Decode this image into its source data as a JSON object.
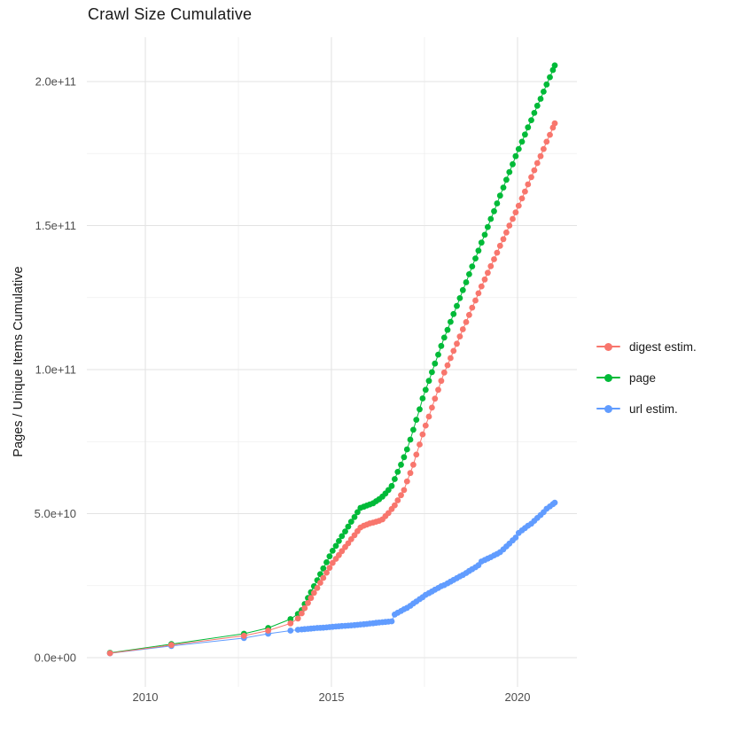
{
  "title": "Crawl Size Cumulative",
  "chart_data": {
    "type": "scatter",
    "title": "Crawl Size Cumulative",
    "xlabel": "",
    "ylabel": "Pages / Unique Items Cumulative",
    "value_unit_of_points": 1000000000.0,
    "xlim": [
      2008.48,
      2021.6
    ],
    "ylim": [
      -10300000000,
      215400000000
    ],
    "grid": "on",
    "legend_position": "right",
    "axes": {
      "x": {
        "major_ticks": [
          {
            "v": 2010,
            "label": "2010"
          },
          {
            "v": 2015,
            "label": "2015"
          },
          {
            "v": 2020,
            "label": "2020"
          }
        ],
        "minor_breaks": [
          2012.5,
          2017.5
        ]
      },
      "y": {
        "major_ticks": [
          {
            "v": 0,
            "label": "0.0e+00"
          },
          {
            "v": 50,
            "label": "5.0e+10"
          },
          {
            "v": 100,
            "label": "1.0e+11"
          },
          {
            "v": 150,
            "label": "1.5e+11"
          },
          {
            "v": 200,
            "label": "2.0e+11"
          }
        ],
        "minor_breaks": [
          25,
          75,
          125,
          175
        ]
      }
    },
    "legend": {
      "entries": [
        {
          "label": "digest estim.",
          "color": "#F8766D"
        },
        {
          "label": "page",
          "color": "#00BA38"
        },
        {
          "label": "url estim.",
          "color": "#619CFF"
        }
      ]
    },
    "series": [
      {
        "name": "page",
        "color": "#00BA38",
        "points": [
          [
            2009.05,
            1.7
          ],
          [
            2010.7,
            4.7
          ],
          [
            2012.65,
            8.3
          ],
          [
            2013.3,
            10.3
          ],
          [
            2013.9,
            13.4
          ],
          [
            2014.1,
            15.2
          ],
          [
            2014.2,
            16.5
          ],
          [
            2014.28,
            18.6
          ],
          [
            2014.37,
            20.7
          ],
          [
            2014.45,
            22.7
          ],
          [
            2014.53,
            24.8
          ],
          [
            2014.62,
            26.9
          ],
          [
            2014.7,
            29
          ],
          [
            2014.78,
            31
          ],
          [
            2014.87,
            33.1
          ],
          [
            2014.95,
            35.2
          ],
          [
            2015.03,
            37.1
          ],
          [
            2015.12,
            38.8
          ],
          [
            2015.2,
            40.5
          ],
          [
            2015.28,
            42.2
          ],
          [
            2015.37,
            43.8
          ],
          [
            2015.45,
            45.5
          ],
          [
            2015.53,
            47.2
          ],
          [
            2015.62,
            48.8
          ],
          [
            2015.7,
            50.5
          ],
          [
            2015.78,
            52
          ],
          [
            2015.87,
            52.4
          ],
          [
            2015.95,
            52.8
          ],
          [
            2016.03,
            53.2
          ],
          [
            2016.12,
            53.6
          ],
          [
            2016.2,
            54.3
          ],
          [
            2016.28,
            55
          ],
          [
            2016.37,
            55.9
          ],
          [
            2016.45,
            57
          ],
          [
            2016.53,
            58.2
          ],
          [
            2016.62,
            59.6
          ],
          [
            2016.7,
            62
          ],
          [
            2016.78,
            64.5
          ],
          [
            2016.87,
            67
          ],
          [
            2016.95,
            69.6
          ],
          [
            2017.03,
            72.3
          ],
          [
            2017.12,
            75.7
          ],
          [
            2017.2,
            79.1
          ],
          [
            2017.28,
            82.6
          ],
          [
            2017.37,
            86.2
          ],
          [
            2017.45,
            90
          ],
          [
            2017.53,
            93
          ],
          [
            2017.62,
            96.1
          ],
          [
            2017.7,
            99.1
          ],
          [
            2017.78,
            102.1
          ],
          [
            2017.87,
            105.2
          ],
          [
            2017.95,
            108.2
          ],
          [
            2018.03,
            111.1
          ],
          [
            2018.12,
            113.8
          ],
          [
            2018.2,
            116.6
          ],
          [
            2018.28,
            119.3
          ],
          [
            2018.37,
            122.1
          ],
          [
            2018.45,
            124.8
          ],
          [
            2018.53,
            127.6
          ],
          [
            2018.62,
            130.3
          ],
          [
            2018.7,
            133.1
          ],
          [
            2018.78,
            135.8
          ],
          [
            2018.87,
            138.6
          ],
          [
            2018.95,
            141.3
          ],
          [
            2019.03,
            144.1
          ],
          [
            2019.12,
            146.8
          ],
          [
            2019.2,
            149.5
          ],
          [
            2019.28,
            152.3
          ],
          [
            2019.37,
            155
          ],
          [
            2019.45,
            157.7
          ],
          [
            2019.53,
            160.4
          ],
          [
            2019.62,
            163.2
          ],
          [
            2019.7,
            165.9
          ],
          [
            2019.78,
            168.6
          ],
          [
            2019.87,
            171.3
          ],
          [
            2019.95,
            174.1
          ],
          [
            2020.03,
            176.6
          ],
          [
            2020.12,
            179.1
          ],
          [
            2020.2,
            181.6
          ],
          [
            2020.28,
            184.1
          ],
          [
            2020.37,
            186.6
          ],
          [
            2020.45,
            189.1
          ],
          [
            2020.53,
            191.6
          ],
          [
            2020.62,
            194
          ],
          [
            2020.7,
            196.5
          ],
          [
            2020.78,
            199
          ],
          [
            2020.87,
            201.5
          ],
          [
            2020.95,
            204
          ],
          [
            2021,
            205.6
          ]
        ]
      },
      {
        "name": "url estim.",
        "color": "#619CFF",
        "points": [
          [
            2009.05,
            1.5
          ],
          [
            2010.7,
            4.05
          ],
          [
            2012.65,
            6.8
          ],
          [
            2013.3,
            8.3
          ],
          [
            2013.9,
            9.4
          ],
          [
            2014.1,
            9.7
          ],
          [
            2014.2,
            9.8
          ],
          [
            2014.28,
            9.9
          ],
          [
            2014.37,
            10
          ],
          [
            2014.45,
            10.1
          ],
          [
            2014.53,
            10.2
          ],
          [
            2014.62,
            10.3
          ],
          [
            2014.7,
            10.35
          ],
          [
            2014.78,
            10.4
          ],
          [
            2014.87,
            10.5
          ],
          [
            2014.95,
            10.6
          ],
          [
            2015.03,
            10.7
          ],
          [
            2015.12,
            10.8
          ],
          [
            2015.2,
            10.9
          ],
          [
            2015.28,
            11
          ],
          [
            2015.37,
            11.05
          ],
          [
            2015.45,
            11.1
          ],
          [
            2015.53,
            11.2
          ],
          [
            2015.62,
            11.3
          ],
          [
            2015.7,
            11.4
          ],
          [
            2015.78,
            11.5
          ],
          [
            2015.87,
            11.6
          ],
          [
            2015.95,
            11.7
          ],
          [
            2016.03,
            11.85
          ],
          [
            2016.12,
            11.95
          ],
          [
            2016.2,
            12.1
          ],
          [
            2016.28,
            12.2
          ],
          [
            2016.37,
            12.3
          ],
          [
            2016.45,
            12.4
          ],
          [
            2016.53,
            12.5
          ],
          [
            2016.62,
            12.6
          ],
          [
            2016.7,
            15
          ],
          [
            2016.78,
            15.6
          ],
          [
            2016.87,
            16.2
          ],
          [
            2016.95,
            16.8
          ],
          [
            2017.03,
            17.3
          ],
          [
            2017.12,
            18
          ],
          [
            2017.2,
            18.8
          ],
          [
            2017.28,
            19.5
          ],
          [
            2017.37,
            20.3
          ],
          [
            2017.45,
            21
          ],
          [
            2017.53,
            21.8
          ],
          [
            2017.62,
            22.4
          ],
          [
            2017.7,
            23
          ],
          [
            2017.78,
            23.6
          ],
          [
            2017.87,
            24.2
          ],
          [
            2017.95,
            24.8
          ],
          [
            2018.03,
            25.2
          ],
          [
            2018.12,
            25.8
          ],
          [
            2018.2,
            26.4
          ],
          [
            2018.28,
            27
          ],
          [
            2018.37,
            27.6
          ],
          [
            2018.45,
            28.2
          ],
          [
            2018.53,
            28.7
          ],
          [
            2018.62,
            29.4
          ],
          [
            2018.7,
            30.1
          ],
          [
            2018.78,
            30.7
          ],
          [
            2018.87,
            31.4
          ],
          [
            2018.95,
            32.1
          ],
          [
            2019.03,
            33.4
          ],
          [
            2019.12,
            33.9
          ],
          [
            2019.2,
            34.4
          ],
          [
            2019.28,
            34.9
          ],
          [
            2019.37,
            35.5
          ],
          [
            2019.45,
            36
          ],
          [
            2019.53,
            36.6
          ],
          [
            2019.62,
            37.6
          ],
          [
            2019.7,
            38.6
          ],
          [
            2019.78,
            39.6
          ],
          [
            2019.87,
            40.7
          ],
          [
            2019.95,
            41.7
          ],
          [
            2020.03,
            43.3
          ],
          [
            2020.12,
            44.2
          ],
          [
            2020.2,
            45
          ],
          [
            2020.28,
            45.8
          ],
          [
            2020.37,
            46.5
          ],
          [
            2020.45,
            47.5
          ],
          [
            2020.53,
            48.5
          ],
          [
            2020.62,
            49.5
          ],
          [
            2020.7,
            50.5
          ],
          [
            2020.78,
            51.7
          ],
          [
            2020.87,
            52.5
          ],
          [
            2020.95,
            53.3
          ],
          [
            2021,
            53.8
          ]
        ]
      },
      {
        "name": "digest estim.",
        "color": "#F8766D",
        "points": [
          [
            2009.05,
            1.55
          ],
          [
            2010.7,
            4.4
          ],
          [
            2012.65,
            7.6
          ],
          [
            2013.3,
            9.4
          ],
          [
            2013.9,
            11.9
          ],
          [
            2014.1,
            13.6
          ],
          [
            2014.2,
            15.4
          ],
          [
            2014.28,
            17.2
          ],
          [
            2014.37,
            19
          ],
          [
            2014.45,
            20.7
          ],
          [
            2014.53,
            22.5
          ],
          [
            2014.62,
            24.2
          ],
          [
            2014.7,
            26
          ],
          [
            2014.78,
            27.7
          ],
          [
            2014.87,
            29.5
          ],
          [
            2014.95,
            31.2
          ],
          [
            2015.03,
            32.9
          ],
          [
            2015.12,
            34.3
          ],
          [
            2015.2,
            35.6
          ],
          [
            2015.28,
            37
          ],
          [
            2015.37,
            38.4
          ],
          [
            2015.45,
            39.7
          ],
          [
            2015.53,
            41.1
          ],
          [
            2015.62,
            42.5
          ],
          [
            2015.7,
            43.9
          ],
          [
            2015.78,
            45.2
          ],
          [
            2015.87,
            45.8
          ],
          [
            2015.95,
            46.2
          ],
          [
            2016.03,
            46.6
          ],
          [
            2016.12,
            46.9
          ],
          [
            2016.2,
            47.2
          ],
          [
            2016.28,
            47.5
          ],
          [
            2016.37,
            48
          ],
          [
            2016.45,
            49.1
          ],
          [
            2016.53,
            50.2
          ],
          [
            2016.62,
            51.6
          ],
          [
            2016.7,
            52.9
          ],
          [
            2016.78,
            54.6
          ],
          [
            2016.87,
            56.4
          ],
          [
            2016.95,
            58.2
          ],
          [
            2017.03,
            61.2
          ],
          [
            2017.12,
            64.1
          ],
          [
            2017.2,
            67
          ],
          [
            2017.28,
            70.5
          ],
          [
            2017.37,
            74
          ],
          [
            2017.45,
            77.5
          ],
          [
            2017.53,
            80.6
          ],
          [
            2017.62,
            83.7
          ],
          [
            2017.7,
            86.8
          ],
          [
            2017.78,
            89.9
          ],
          [
            2017.87,
            93
          ],
          [
            2017.95,
            96.1
          ],
          [
            2018.03,
            99
          ],
          [
            2018.12,
            101.5
          ],
          [
            2018.2,
            104
          ],
          [
            2018.28,
            106.5
          ],
          [
            2018.37,
            109
          ],
          [
            2018.45,
            111.5
          ],
          [
            2018.53,
            114
          ],
          [
            2018.62,
            116.5
          ],
          [
            2018.7,
            119
          ],
          [
            2018.78,
            121.5
          ],
          [
            2018.87,
            124
          ],
          [
            2018.95,
            126.5
          ],
          [
            2019.03,
            128.9
          ],
          [
            2019.12,
            131.3
          ],
          [
            2019.2,
            133.6
          ],
          [
            2019.28,
            135.9
          ],
          [
            2019.37,
            138.3
          ],
          [
            2019.45,
            140.6
          ],
          [
            2019.53,
            143
          ],
          [
            2019.62,
            145.3
          ],
          [
            2019.7,
            147.6
          ],
          [
            2019.78,
            150
          ],
          [
            2019.87,
            152.3
          ],
          [
            2019.95,
            154.6
          ],
          [
            2020.03,
            156.9
          ],
          [
            2020.12,
            159.4
          ],
          [
            2020.2,
            161.8
          ],
          [
            2020.28,
            164.3
          ],
          [
            2020.37,
            166.8
          ],
          [
            2020.45,
            169.2
          ],
          [
            2020.53,
            171.7
          ],
          [
            2020.62,
            174.1
          ],
          [
            2020.7,
            176.6
          ],
          [
            2020.78,
            179.1
          ],
          [
            2020.87,
            181.5
          ],
          [
            2020.95,
            184
          ],
          [
            2021,
            185.5
          ]
        ]
      }
    ]
  }
}
